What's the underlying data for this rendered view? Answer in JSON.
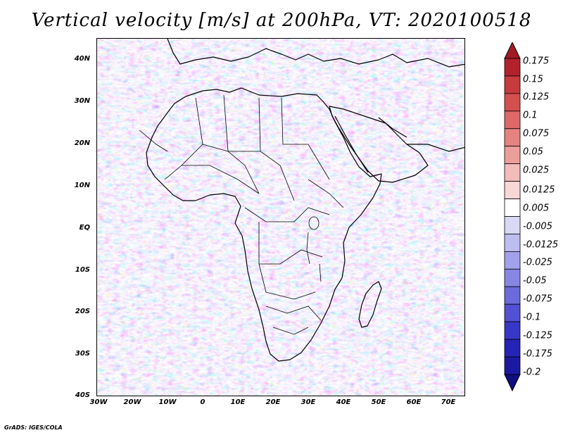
{
  "title": "Vertical velocity [m/s] at 200hPa, VT: 2020100518",
  "credit": "GrADS: IGES/COLA",
  "map": {
    "latitude_labels": [
      "40N",
      "30N",
      "20N",
      "10N",
      "EQ",
      "10S",
      "20S",
      "30S",
      "40S"
    ],
    "longitude_labels": [
      "30W",
      "20W",
      "10W",
      "0",
      "10E",
      "20E",
      "30E",
      "40E",
      "50E",
      "60E",
      "70E"
    ],
    "variable": "vertical velocity",
    "level": "200hPa"
  },
  "colorbar": {
    "labels": [
      "0.175",
      "0.15",
      "0.125",
      "0.1",
      "0.075",
      "0.05",
      "0.025",
      "0.0125",
      "0.005",
      "-0.005",
      "-0.0125",
      "-0.025",
      "-0.05",
      "-0.075",
      "-0.1",
      "-0.125",
      "-0.175",
      "-0.2"
    ],
    "colors": [
      "#b3222c",
      "#c73a3d",
      "#d4504f",
      "#de6867",
      "#e58381",
      "#ec9e9b",
      "#f2bcb9",
      "#f8d8d6",
      "#ffffff",
      "#d9d9f5",
      "#bdbdf0",
      "#a2a2ea",
      "#8787e3",
      "#6b6bdb",
      "#5151d3",
      "#3838c8",
      "#2424b6",
      "#1a1aa0"
    ],
    "color_top_arrow": "#a11b24",
    "color_bottom_arrow": "#0f0f80"
  },
  "colors": {
    "background": "#c9c9f3",
    "land_outline": "#000000"
  }
}
